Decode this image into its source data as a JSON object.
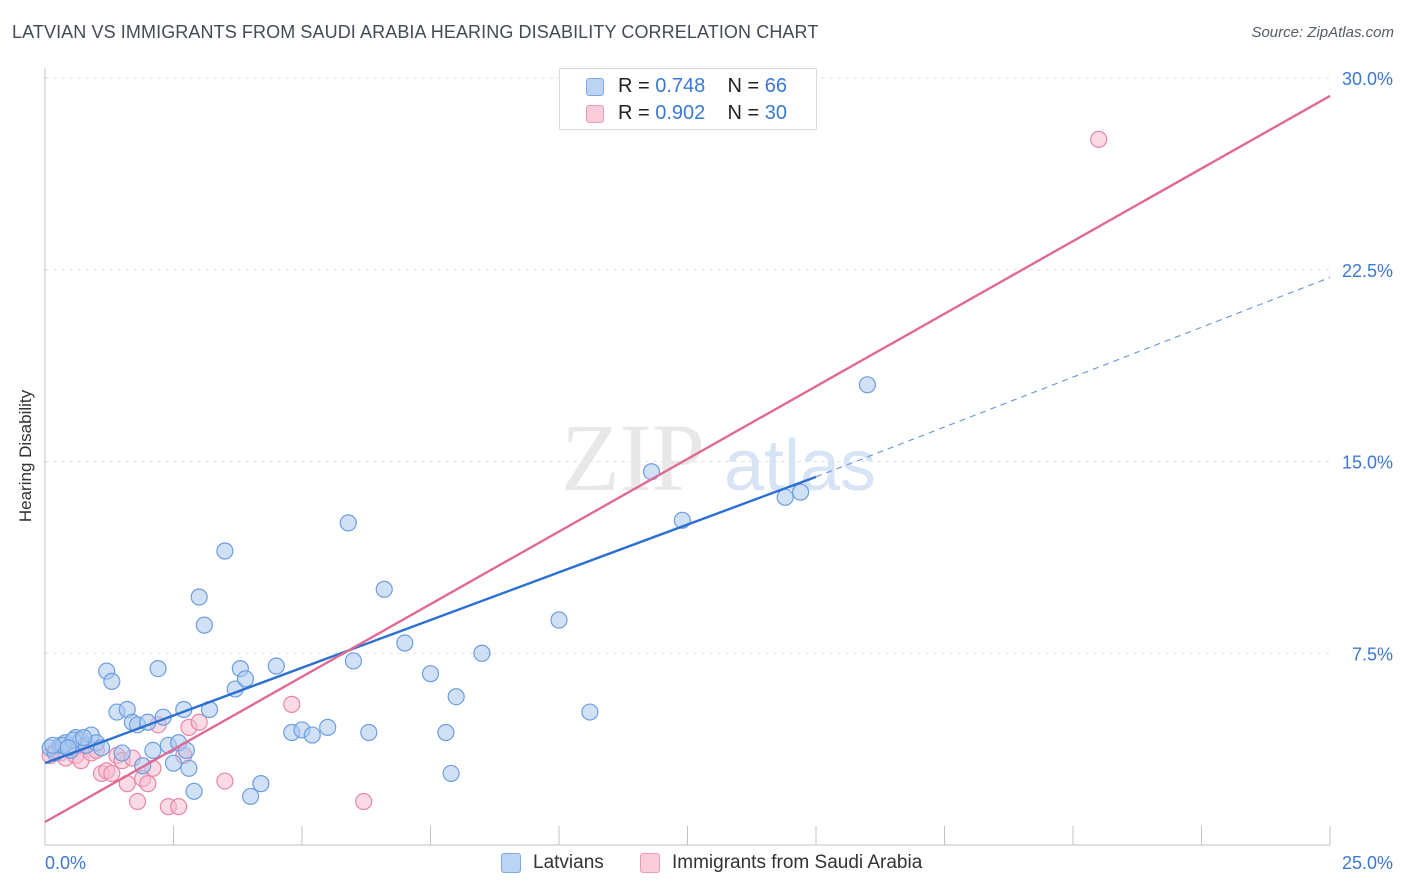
{
  "page": {
    "title": "LATVIAN VS IMMIGRANTS FROM SAUDI ARABIA HEARING DISABILITY CORRELATION CHART",
    "source": "Source: ZipAtlas.com",
    "watermark_zip": "ZIP",
    "watermark_atlas": "atlas"
  },
  "legend": {
    "r_label": "R =",
    "n_label": "N =",
    "series": [
      {
        "r": "0.748",
        "n": "66"
      },
      {
        "r": "0.902",
        "n": "30"
      }
    ]
  },
  "bottom_legend": [
    "Latvians",
    "Immigrants from Saudi Arabia"
  ],
  "colors": {
    "blue_fill": "#a9c8ef",
    "blue_stroke": "#6d9de0",
    "blue_line": "#2a6fd1",
    "pink_fill": "#f6bccd",
    "pink_stroke": "#e887a6",
    "pink_line": "#e06a94",
    "tick_label": "#3b78d6",
    "grid": "#dfe2e6"
  },
  "chart_data": {
    "type": "scatter",
    "title": "LATVIAN VS IMMIGRANTS FROM SAUDI ARABIA HEARING DISABILITY CORRELATION CHART",
    "xlabel": "",
    "ylabel": "Hearing Disability",
    "xlim": [
      0,
      25
    ],
    "ylim": [
      0,
      30
    ],
    "x_tick_labels": [
      "0.0%",
      "25.0%"
    ],
    "y_ticks": [
      7.5,
      15.0,
      22.5,
      30.0
    ],
    "y_tick_labels": [
      "7.5%",
      "15.0%",
      "22.5%",
      "30.0%"
    ],
    "grid": true,
    "legend_position": "top-center",
    "series": [
      {
        "name": "Latvians",
        "r": 0.748,
        "n": 66,
        "trend": {
          "x0": 0,
          "y0": 3.2,
          "x1": 15,
          "y1": 14.4,
          "dash_to_x": 25,
          "dash_to_y": 22.2
        },
        "points": [
          [
            0.1,
            3.8
          ],
          [
            0.2,
            3.6
          ],
          [
            0.3,
            3.9
          ],
          [
            0.4,
            4.0
          ],
          [
            0.5,
            3.7
          ],
          [
            0.6,
            4.2
          ],
          [
            0.7,
            4.1
          ],
          [
            0.8,
            3.9
          ],
          [
            0.9,
            4.3
          ],
          [
            1.0,
            4.0
          ],
          [
            0.35,
            3.9
          ],
          [
            0.55,
            4.1
          ],
          [
            1.1,
            3.8
          ],
          [
            1.2,
            6.8
          ],
          [
            1.3,
            6.4
          ],
          [
            1.4,
            5.2
          ],
          [
            1.5,
            3.6
          ],
          [
            1.6,
            5.3
          ],
          [
            1.7,
            4.8
          ],
          [
            1.8,
            4.7
          ],
          [
            1.9,
            3.1
          ],
          [
            2.0,
            4.8
          ],
          [
            2.1,
            3.7
          ],
          [
            2.2,
            6.9
          ],
          [
            2.3,
            5.0
          ],
          [
            2.4,
            3.9
          ],
          [
            2.5,
            3.2
          ],
          [
            2.6,
            4.0
          ],
          [
            2.7,
            5.3
          ],
          [
            2.8,
            3.0
          ],
          [
            2.9,
            2.1
          ],
          [
            3.0,
            9.7
          ],
          [
            3.1,
            8.6
          ],
          [
            3.2,
            5.3
          ],
          [
            3.5,
            11.5
          ],
          [
            3.7,
            6.1
          ],
          [
            3.8,
            6.9
          ],
          [
            3.9,
            6.5
          ],
          [
            4.0,
            1.9
          ],
          [
            4.2,
            2.4
          ],
          [
            4.5,
            7.0
          ],
          [
            4.8,
            4.4
          ],
          [
            5.0,
            4.5
          ],
          [
            5.2,
            4.3
          ],
          [
            5.5,
            4.6
          ],
          [
            6.0,
            7.2
          ],
          [
            5.9,
            12.6
          ],
          [
            6.3,
            4.4
          ],
          [
            6.6,
            10.0
          ],
          [
            7.0,
            7.9
          ],
          [
            7.5,
            6.7
          ],
          [
            7.8,
            4.4
          ],
          [
            7.9,
            2.8
          ],
          [
            8.0,
            5.8
          ],
          [
            8.5,
            7.5
          ],
          [
            10.0,
            8.8
          ],
          [
            10.6,
            5.2
          ],
          [
            11.8,
            14.6
          ],
          [
            12.4,
            12.7
          ],
          [
            14.4,
            13.6
          ],
          [
            14.7,
            13.8
          ],
          [
            16.0,
            18.0
          ],
          [
            0.15,
            3.9
          ],
          [
            0.45,
            3.8
          ],
          [
            0.75,
            4.2
          ],
          [
            2.75,
            3.7
          ]
        ]
      },
      {
        "name": "Immigrants from Saudi Arabia",
        "r": 0.902,
        "n": 30,
        "trend": {
          "x0": 0,
          "y0": 0.9,
          "x1": 25,
          "y1": 29.3
        },
        "points": [
          [
            0.1,
            3.5
          ],
          [
            0.2,
            3.7
          ],
          [
            0.3,
            3.6
          ],
          [
            0.4,
            3.4
          ],
          [
            0.5,
            3.8
          ],
          [
            0.6,
            3.5
          ],
          [
            0.7,
            3.3
          ],
          [
            0.8,
            3.9
          ],
          [
            0.9,
            3.6
          ],
          [
            1.0,
            3.7
          ],
          [
            1.1,
            2.8
          ],
          [
            1.2,
            2.9
          ],
          [
            1.3,
            2.8
          ],
          [
            1.4,
            3.5
          ],
          [
            1.5,
            3.3
          ],
          [
            1.6,
            2.4
          ],
          [
            1.7,
            3.4
          ],
          [
            1.8,
            1.7
          ],
          [
            1.9,
            2.6
          ],
          [
            2.0,
            2.4
          ],
          [
            2.1,
            3.0
          ],
          [
            2.2,
            4.7
          ],
          [
            2.4,
            1.5
          ],
          [
            2.6,
            1.5
          ],
          [
            2.7,
            3.5
          ],
          [
            2.8,
            4.6
          ],
          [
            3.0,
            4.8
          ],
          [
            3.5,
            2.5
          ],
          [
            4.8,
            5.5
          ],
          [
            6.2,
            1.7
          ]
        ]
      },
      {
        "name": "Immigrants from Saudi Arabia (outlier)",
        "points": [
          [
            20.5,
            27.6
          ]
        ]
      }
    ]
  }
}
